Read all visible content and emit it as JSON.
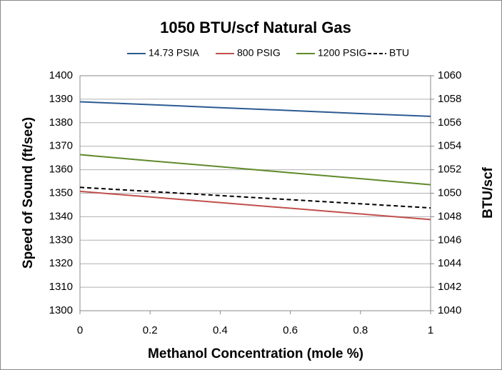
{
  "chart_data": {
    "type": "line",
    "title": "1050 BTU/scf Natural Gas",
    "x_label": "Methanol Concentration (mole %)",
    "y_label": "Speed of Sound (ft/sec)",
    "y2_label": "BTU/scf",
    "x": [
      0,
      0.2,
      0.4,
      0.6,
      0.8,
      1
    ],
    "xlim": [
      0,
      1
    ],
    "xticks": [
      0,
      0.2,
      0.4,
      0.6,
      0.8,
      1
    ],
    "ylim": [
      1300,
      1400
    ],
    "yticks": [
      1300,
      1310,
      1320,
      1330,
      1340,
      1350,
      1360,
      1370,
      1380,
      1390,
      1400
    ],
    "y2lim": [
      1040,
      1060
    ],
    "y2ticks": [
      1040,
      1042,
      1044,
      1046,
      1048,
      1050,
      1052,
      1054,
      1056,
      1058,
      1060
    ],
    "grid": true,
    "legend": "top",
    "series": [
      {
        "name": "14.73 PSIA",
        "color": "#2c5a92",
        "values": [
          1388.9,
          1387.7,
          1386.4,
          1385.2,
          1383.9,
          1382.7
        ]
      },
      {
        "name": "800 PSIG",
        "color": "#c0504d",
        "values": [
          1350.8,
          1348.4,
          1346.0,
          1343.6,
          1341.2,
          1338.8
        ]
      },
      {
        "name": "1200 PSIG",
        "color": "#5f8a2a",
        "values": [
          1366.4,
          1363.8,
          1361.3,
          1358.7,
          1356.2,
          1353.6
        ]
      },
      {
        "name": "BTU",
        "color": "#000000",
        "dashed": true,
        "axis": "y2",
        "values": [
          1050.5,
          1050.15,
          1049.8,
          1049.45,
          1049.1,
          1048.75
        ]
      }
    ]
  }
}
